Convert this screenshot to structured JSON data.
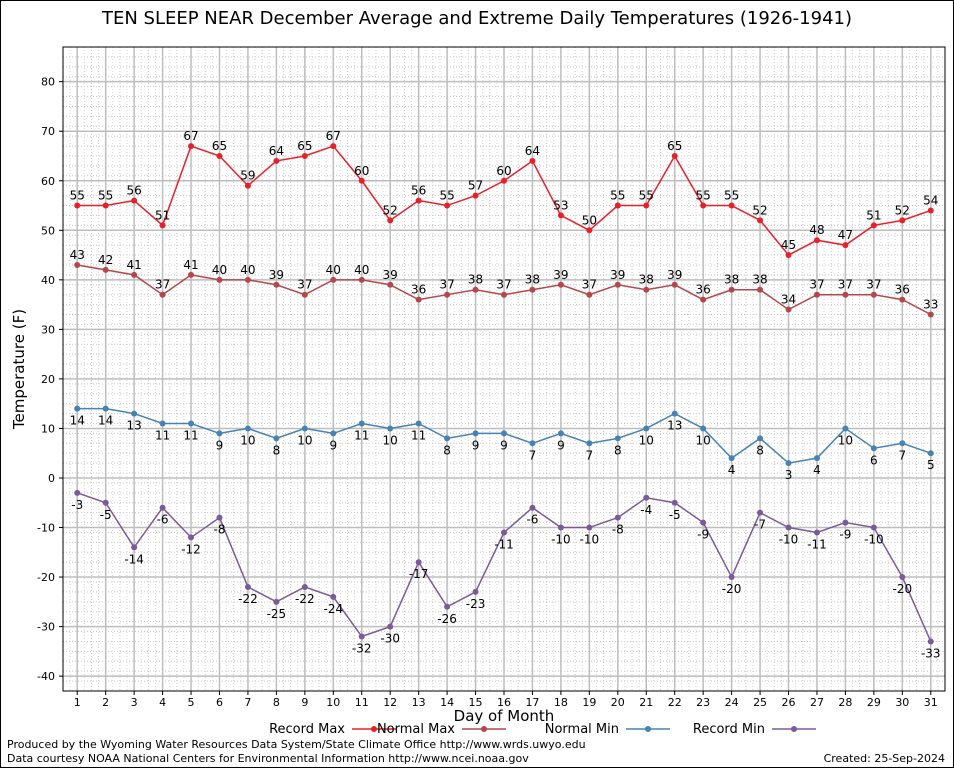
{
  "chart_data": {
    "type": "line",
    "title": "TEN SLEEP NEAR December Average and Extreme Daily Temperatures (1926-1941)",
    "xlabel": "Day of Month",
    "ylabel": "Temperature (F)",
    "x": [
      1,
      2,
      3,
      4,
      5,
      6,
      7,
      8,
      9,
      10,
      11,
      12,
      13,
      14,
      15,
      16,
      17,
      18,
      19,
      20,
      21,
      22,
      23,
      24,
      25,
      26,
      27,
      28,
      29,
      30,
      31
    ],
    "ylim": [
      -43,
      87
    ],
    "yticks": [
      -40,
      -30,
      -20,
      -10,
      0,
      10,
      20,
      30,
      40,
      50,
      60,
      70,
      80
    ],
    "grid": true,
    "legend_position": "bottom",
    "series": [
      {
        "name": "Record Max",
        "color": "#e8202a",
        "values": [
          55,
          55,
          56,
          51,
          67,
          65,
          59,
          64,
          65,
          67,
          60,
          52,
          56,
          55,
          57,
          60,
          64,
          53,
          50,
          55,
          55,
          65,
          55,
          55,
          52,
          45,
          48,
          47,
          51,
          52,
          54
        ]
      },
      {
        "name": "Normal Max",
        "color": "#b5474c",
        "values": [
          43,
          42,
          41,
          37,
          41,
          40,
          40,
          39,
          37,
          40,
          40,
          39,
          36,
          37,
          38,
          37,
          38,
          39,
          37,
          39,
          38,
          39,
          36,
          38,
          38,
          34,
          37,
          37,
          37,
          36,
          33
        ]
      },
      {
        "name": "Normal Min",
        "color": "#4682b4",
        "values": [
          14,
          14,
          13,
          11,
          11,
          9,
          10,
          8,
          10,
          9,
          11,
          10,
          11,
          8,
          9,
          9,
          7,
          9,
          7,
          8,
          10,
          13,
          10,
          4,
          8,
          3,
          4,
          10,
          6,
          7,
          5
        ]
      },
      {
        "name": "Record Min",
        "color": "#7b5a9b",
        "values": [
          -3,
          -5,
          -14,
          -6,
          -12,
          -8,
          -22,
          -25,
          -22,
          -24,
          -32,
          -30,
          -17,
          -26,
          -23,
          -11,
          -6,
          -10,
          -10,
          -8,
          -4,
          -5,
          -9,
          -20,
          -7,
          -10,
          -11,
          -9,
          -10,
          -20,
          -33
        ]
      }
    ]
  },
  "footer": {
    "credit_line1": "Produced by the Wyoming Water Resources Data System/State Climate Office http://www.wrds.uwyo.edu",
    "credit_line2": "Data courtesy NOAA National Centers for Environmental Information http://www.ncei.noaa.gov",
    "created": "Created:  25-Sep-2024"
  }
}
